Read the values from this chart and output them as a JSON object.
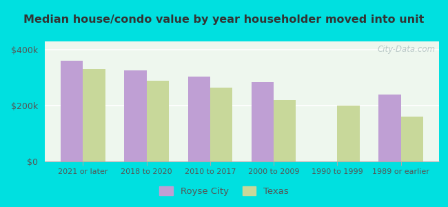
{
  "title": "Median house/condo value by year householder moved into unit",
  "categories": [
    "2021 or later",
    "2018 to 2020",
    "2010 to 2017",
    "2000 to 2009",
    "1990 to 1999",
    "1989 or earlier"
  ],
  "royse_city": [
    362000,
    325000,
    305000,
    285000,
    0,
    240000
  ],
  "texas": [
    330000,
    290000,
    265000,
    220000,
    200000,
    160000
  ],
  "royse_city_color": "#bf9fd4",
  "texas_color": "#c8d89a",
  "background_outer": "#00e0e0",
  "background_inner": "#eef7ee",
  "yticks": [
    0,
    200000,
    400000
  ],
  "ytick_labels": [
    "$0",
    "$200k",
    "$400k"
  ],
  "ylim": [
    0,
    430000
  ],
  "legend_royse": "Royse City",
  "legend_texas": "Texas",
  "watermark": "City-Data.com"
}
